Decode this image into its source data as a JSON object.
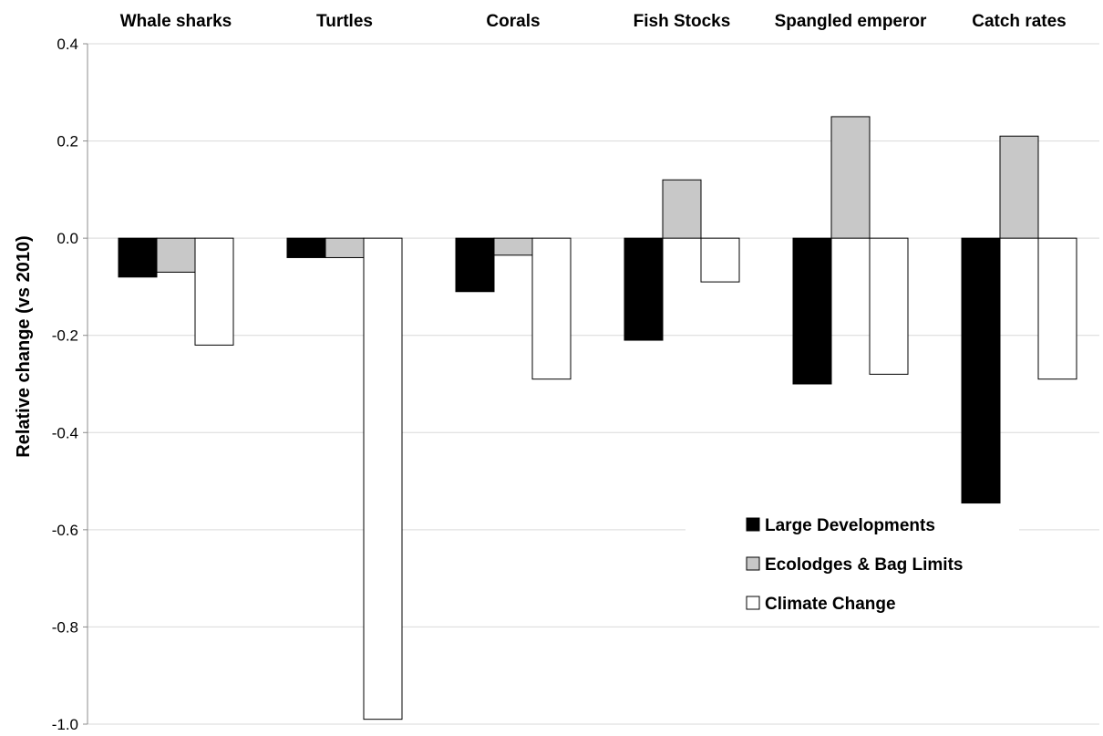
{
  "chart_data": {
    "type": "bar",
    "categories": [
      "Whale sharks",
      "Turtles",
      "Corals",
      "Fish Stocks",
      "Spangled emperor",
      "Catch rates"
    ],
    "series": [
      {
        "name": "Large Developments",
        "color": "#000000",
        "values": [
          -0.08,
          -0.04,
          -0.11,
          -0.21,
          -0.3,
          -0.545
        ]
      },
      {
        "name": "Ecolodges & Bag Limits",
        "color": "#c8c8c8",
        "values": [
          -0.07,
          -0.04,
          -0.035,
          0.12,
          0.25,
          0.21
        ]
      },
      {
        "name": "Climate Change",
        "color": "#ffffff",
        "values": [
          -0.22,
          -0.99,
          -0.29,
          -0.09,
          -0.28,
          -0.29
        ]
      }
    ],
    "title": "",
    "xlabel": "",
    "ylabel": "Relative change (vs 2010)",
    "ylim": [
      -1.0,
      0.4
    ],
    "yticks": [
      "0.4",
      "0.2",
      "0.0",
      "-0.2",
      "-0.4",
      "-0.6",
      "-0.8",
      "-1.0"
    ],
    "ytick_values": [
      0.4,
      0.2,
      0.0,
      -0.2,
      -0.4,
      -0.6,
      -0.8,
      -1.0
    ],
    "grid": true,
    "legend_position": "lower-right",
    "category_labels_position": "top"
  }
}
